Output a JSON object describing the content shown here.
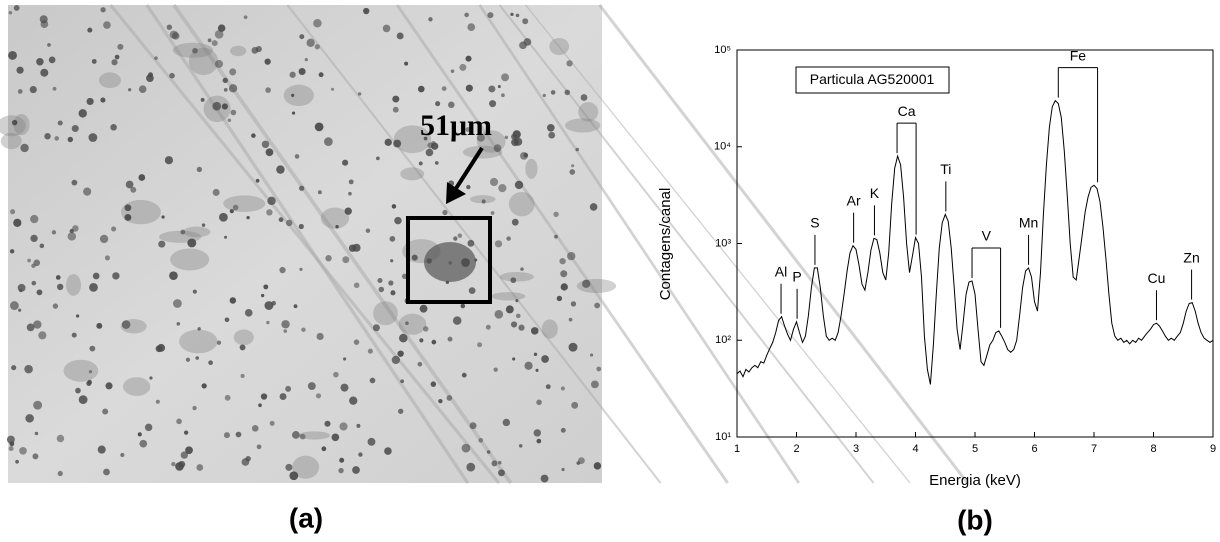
{
  "chart_data": {
    "type": "line",
    "title": "Particula AG520001",
    "caption": "(b)",
    "x_label": "Energia (keV)",
    "y_label": "Contagens/canal",
    "color": "#000000",
    "y_scale": "log",
    "xlim": [
      1,
      9
    ],
    "xticks": [
      1,
      2,
      3,
      4,
      5,
      6,
      7,
      8,
      9
    ],
    "ylim": [
      10,
      100000
    ],
    "yticks": [
      {
        "value": 10,
        "label": "10¹"
      },
      {
        "value": 100,
        "label": "10²"
      },
      {
        "value": 1000,
        "label": "10³"
      },
      {
        "value": 10000,
        "label": "10⁴"
      },
      {
        "value": 100000,
        "label": "10⁵"
      }
    ],
    "x": [
      1,
      1.05,
      1.1,
      1.15,
      1.2,
      1.25,
      1.3,
      1.35,
      1.4,
      1.45,
      1.5,
      1.55,
      1.6,
      1.65,
      1.7,
      1.75,
      1.8,
      1.85,
      1.9,
      1.95,
      2,
      2.05,
      2.1,
      2.15,
      2.2,
      2.25,
      2.3,
      2.35,
      2.4,
      2.45,
      2.5,
      2.55,
      2.6,
      2.65,
      2.7,
      2.75,
      2.8,
      2.85,
      2.9,
      2.95,
      3,
      3.05,
      3.1,
      3.15,
      3.2,
      3.25,
      3.3,
      3.35,
      3.4,
      3.45,
      3.5,
      3.55,
      3.6,
      3.65,
      3.7,
      3.75,
      3.8,
      3.85,
      3.9,
      3.95,
      4,
      4.05,
      4.1,
      4.15,
      4.2,
      4.25,
      4.3,
      4.35,
      4.4,
      4.45,
      4.5,
      4.55,
      4.6,
      4.65,
      4.7,
      4.75,
      4.8,
      4.85,
      4.9,
      4.95,
      5,
      5.05,
      5.1,
      5.15,
      5.2,
      5.25,
      5.3,
      5.35,
      5.4,
      5.45,
      5.5,
      5.55,
      5.6,
      5.65,
      5.7,
      5.75,
      5.8,
      5.85,
      5.9,
      5.95,
      6,
      6.05,
      6.1,
      6.15,
      6.2,
      6.25,
      6.3,
      6.35,
      6.4,
      6.45,
      6.5,
      6.55,
      6.6,
      6.65,
      6.7,
      6.75,
      6.8,
      6.85,
      6.9,
      6.95,
      7,
      7.05,
      7.1,
      7.15,
      7.2,
      7.25,
      7.3,
      7.35,
      7.4,
      7.45,
      7.5,
      7.55,
      7.6,
      7.65,
      7.7,
      7.75,
      7.8,
      7.85,
      7.9,
      7.95,
      8,
      8.05,
      8.1,
      8.15,
      8.2,
      8.25,
      8.3,
      8.35,
      8.4,
      8.45,
      8.5,
      8.55,
      8.6,
      8.65,
      8.7,
      8.75,
      8.8,
      8.85,
      8.9,
      8.95,
      9
    ],
    "values": [
      45,
      48,
      42,
      50,
      47,
      52,
      55,
      52,
      60,
      58,
      70,
      82,
      95,
      120,
      160,
      175,
      140,
      115,
      100,
      130,
      155,
      120,
      95,
      110,
      180,
      350,
      560,
      560,
      350,
      180,
      110,
      100,
      105,
      100,
      120,
      180,
      300,
      520,
      800,
      950,
      870,
      600,
      380,
      330,
      500,
      850,
      1130,
      1100,
      800,
      500,
      420,
      800,
      2600,
      6000,
      8000,
      6500,
      3000,
      1000,
      500,
      750,
      1150,
      1000,
      450,
      110,
      50,
      35,
      90,
      300,
      900,
      1650,
      2000,
      1700,
      900,
      350,
      130,
      80,
      150,
      300,
      400,
      410,
      300,
      130,
      60,
      55,
      70,
      90,
      100,
      120,
      125,
      110,
      95,
      80,
      75,
      80,
      100,
      180,
      350,
      520,
      560,
      450,
      250,
      200,
      500,
      2000,
      6500,
      16000,
      26000,
      30000,
      28000,
      20000,
      9000,
      3200,
      1000,
      450,
      420,
      700,
      1200,
      2100,
      3000,
      3800,
      4000,
      3700,
      2700,
      1500,
      700,
      300,
      150,
      110,
      100,
      105,
      95,
      100,
      92,
      100,
      95,
      105,
      100,
      110,
      120,
      130,
      145,
      150,
      140,
      125,
      110,
      100,
      105,
      100,
      110,
      120,
      150,
      200,
      240,
      245,
      200,
      150,
      120,
      105,
      100,
      95,
      100
    ],
    "peak_labels": [
      {
        "text": "Al",
        "x": [
          1.74
        ]
      },
      {
        "text": "P",
        "x": [
          2.01
        ]
      },
      {
        "text": "S",
        "x": [
          2.31
        ]
      },
      {
        "text": "Ar",
        "x": [
          2.96
        ]
      },
      {
        "text": "K",
        "x": [
          3.31
        ]
      },
      {
        "text": "Ca",
        "x": [
          3.69,
          4.01
        ]
      },
      {
        "text": "Ti",
        "x": [
          4.51
        ]
      },
      {
        "text": "V",
        "x": [
          4.95,
          5.43
        ]
      },
      {
        "text": "Mn",
        "x": [
          5.9
        ]
      },
      {
        "text": "Fe",
        "x": [
          6.4,
          7.06
        ]
      },
      {
        "text": "Cu",
        "x": [
          8.05
        ]
      },
      {
        "text": "Zn",
        "x": [
          8.64
        ]
      }
    ]
  },
  "photo": {
    "scale_label": "51μm",
    "caption": "(a)"
  }
}
